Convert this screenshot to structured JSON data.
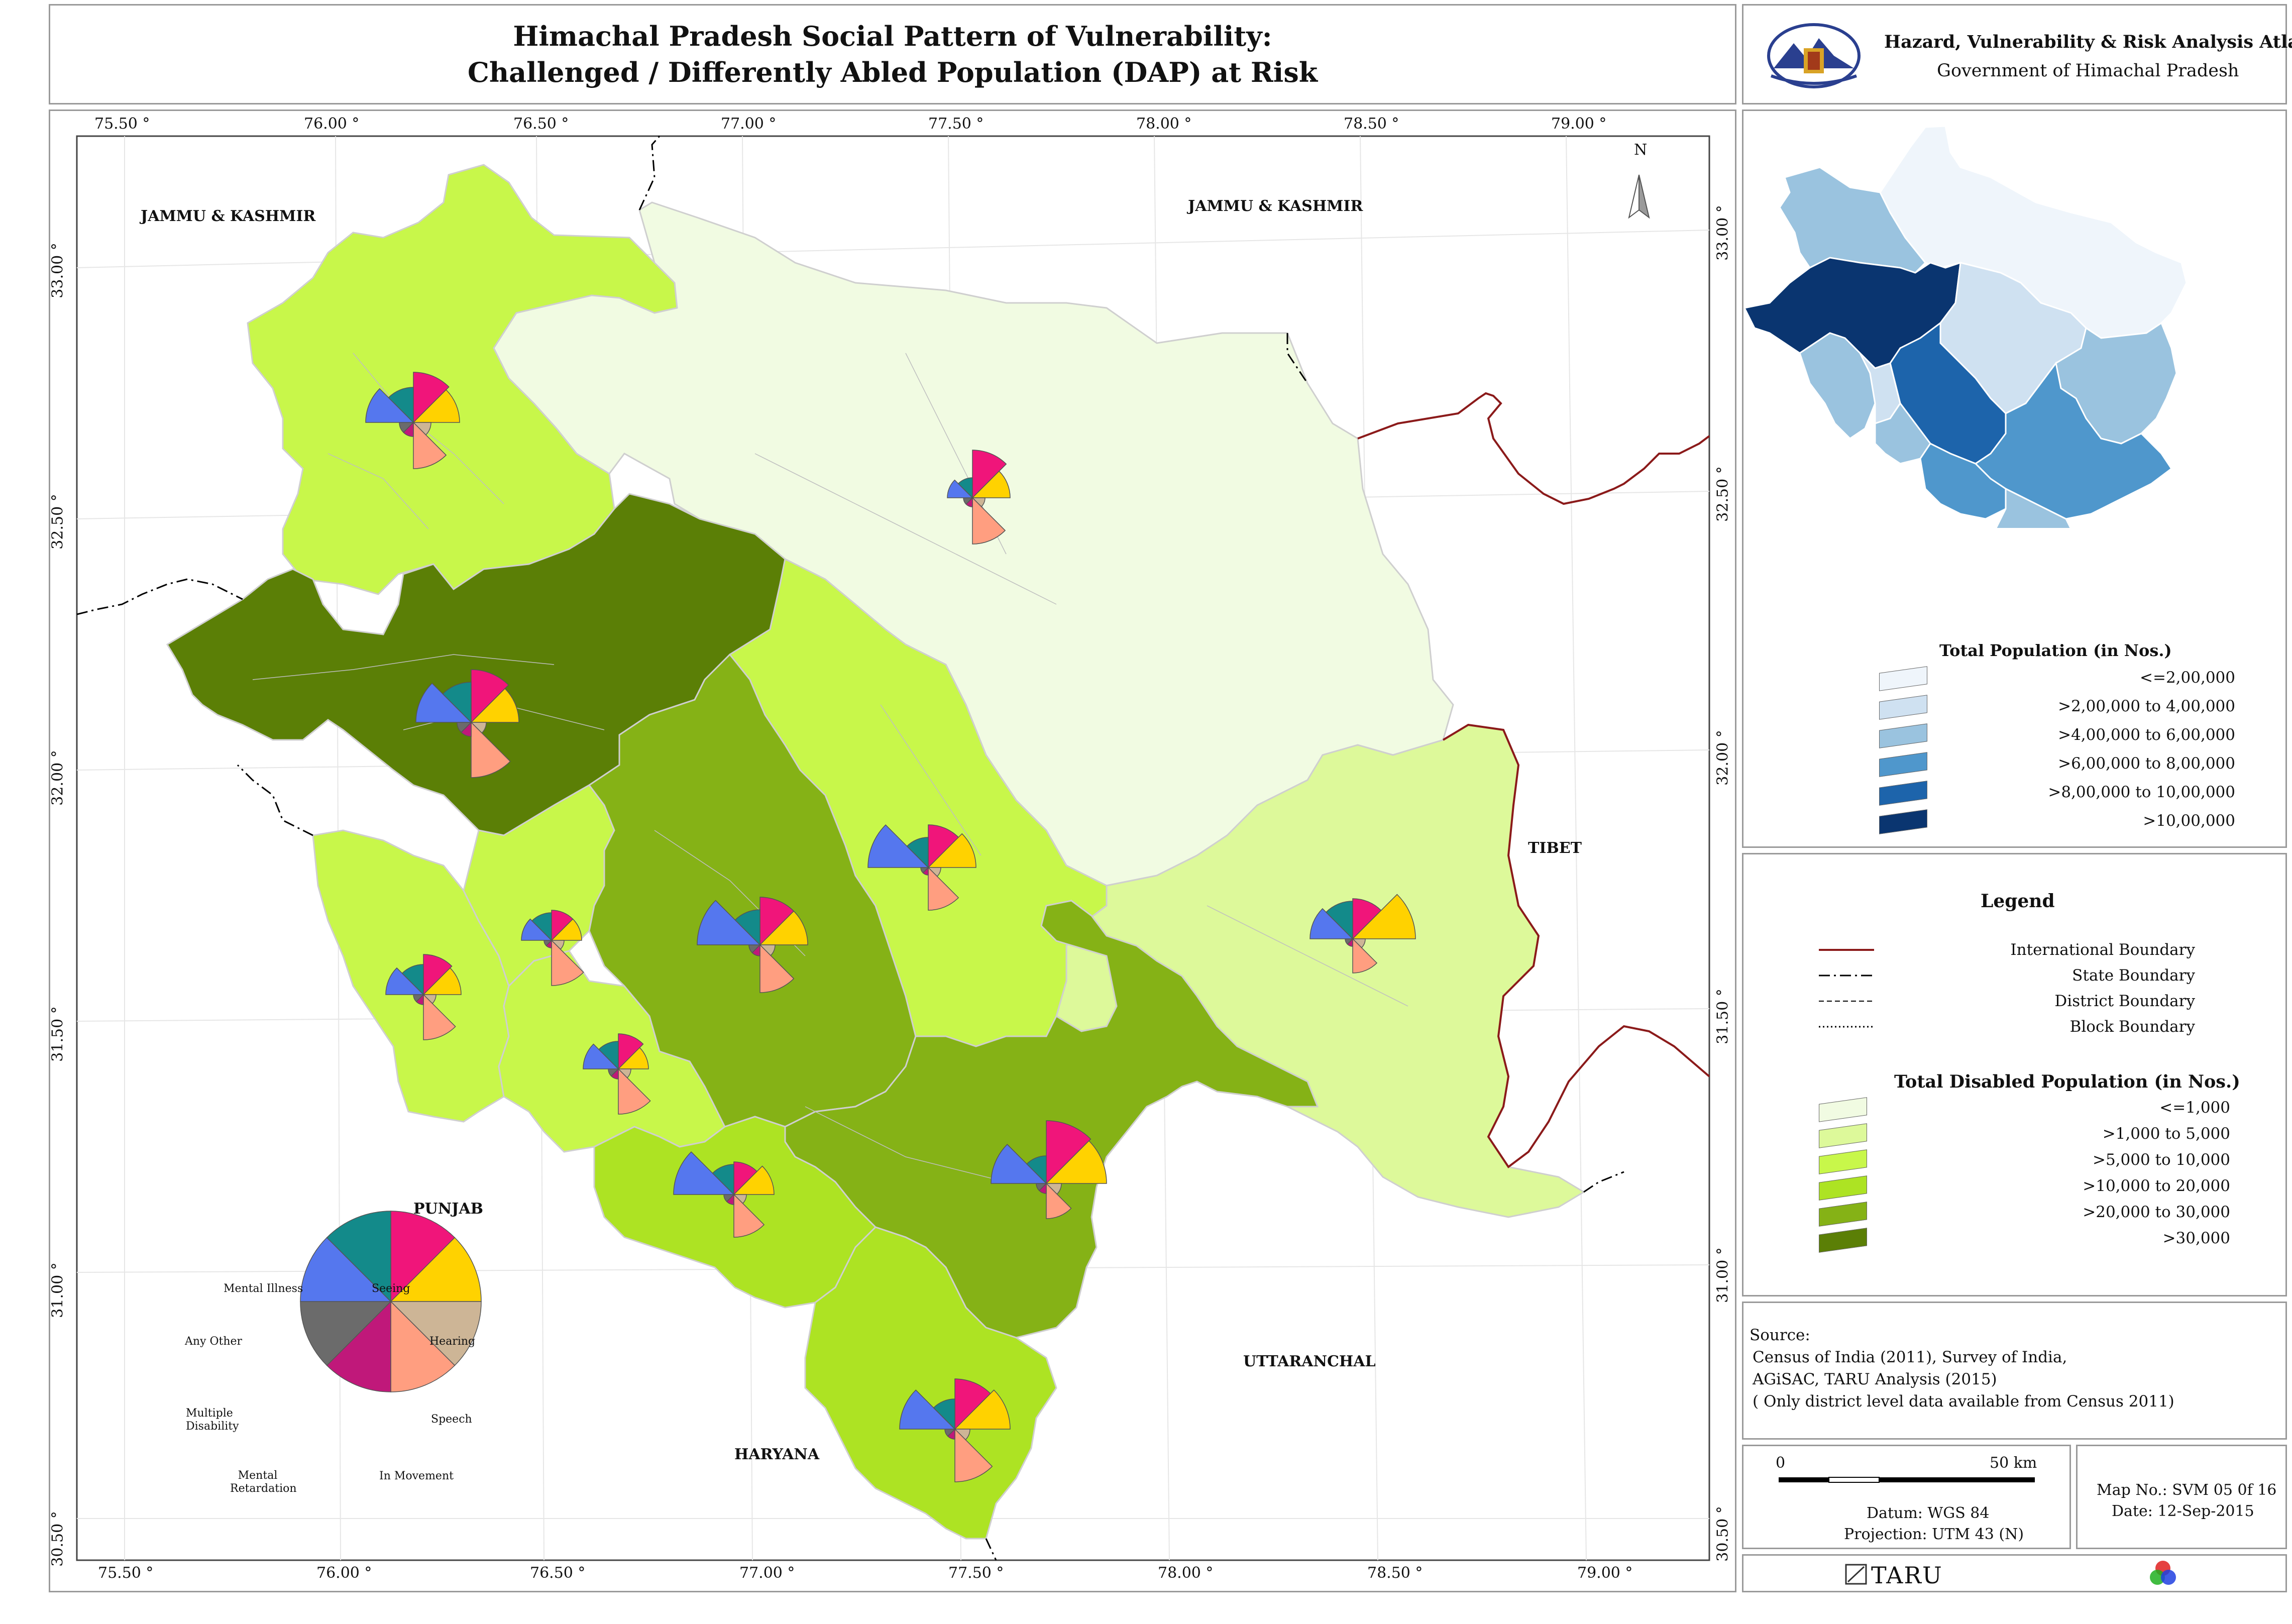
{
  "title": {
    "line1": "Himachal Pradesh Social Pattern of Vulnerability:",
    "line2": "Challenged / Differently Abled Population (DAP) at Risk"
  },
  "atlas": {
    "title": "Hazard, Vulnerability & Risk Analysis Atlas",
    "subtitle": "Government of Himachal Pradesh",
    "emblem_icon": "himachal-emblem-icon"
  },
  "map": {
    "top_ticks": [
      "75.50 °",
      "76.00 °",
      "76.50 °",
      "77.00 °",
      "77.50 °",
      "78.00 °",
      "78.50 °",
      "79.00 °"
    ],
    "bottom_ticks": [
      "75.50 °",
      "76.00 °",
      "76.50 °",
      "77.00 °",
      "77.50 °",
      "78.00 °",
      "78.50 °",
      "79.00 °"
    ],
    "left_ticks": [
      "33.00 °",
      "32.50 °",
      "32.00 °",
      "31.50 °",
      "31.00 °",
      "30.50 °"
    ],
    "right_ticks": [
      "33.00 °",
      "32.50 °",
      "32.00 °",
      "31.50 °",
      "31.00 °",
      "30.50 °"
    ],
    "north_label": "N",
    "north_icon": "north-arrow-icon",
    "labels": {
      "jk_west": "JAMMU & KASHMIR",
      "jk_north": "JAMMU & KASHMIR",
      "tibet": "TIBET",
      "punjab": "PUNJAB",
      "haryana": "HARYANA",
      "uttaranchal": "UTTARANCHAL"
    },
    "district_colors": {
      "lt1000": "#f1fbe2",
      "r1000_5000": "#ddf99a",
      "r5000_10000": "#c8f74a",
      "r10000_20000": "#ade323",
      "r20000_30000": "#85b216",
      "gt30000": "#5b7f06"
    }
  },
  "pie_key": {
    "labels": {
      "mental_illness": "Mental Illness",
      "seeing": "Seeing",
      "any_other": "Any Other",
      "hearing": "Hearing",
      "multiple": "Multiple Disability",
      "speech": "Speech",
      "retardation": "Mental Retardation",
      "movement": "In Movement"
    },
    "colors": {
      "seeing": "#f0157a",
      "hearing": "#ffd200",
      "speech": "#cdb596",
      "movement": "#ff9e80",
      "retardation": "#c0187a",
      "multiple": "#6b6b6b",
      "any_other": "#5577ee",
      "mental_illness": "#138a8a"
    }
  },
  "inset": {
    "legend_title": "Total Population (in Nos.)",
    "classes": [
      {
        "label": "<=2,00,000",
        "color": "#eff5fb"
      },
      {
        "label": ">2,00,000 to 4,00,000",
        "color": "#cfe1f1"
      },
      {
        "label": ">4,00,000 to 6,00,000",
        "color": "#9ac3df"
      },
      {
        "label": ">6,00,000 to 8,00,000",
        "color": "#4f97cc"
      },
      {
        "label": ">8,00,000 to 10,00,000",
        "color": "#1d64ab"
      },
      {
        "label": ">10,00,000",
        "color": "#0a3570"
      }
    ]
  },
  "legend": {
    "title": "Legend",
    "boundaries": [
      {
        "label": "International Boundary",
        "color": "#8b1a1a",
        "style": "solid"
      },
      {
        "label": "State Boundary",
        "color": "#000000",
        "style": "dashdot"
      },
      {
        "label": "District Boundary",
        "color": "#000000",
        "style": "dashed"
      },
      {
        "label": "Block Boundary",
        "color": "#000000",
        "style": "dotted"
      }
    ],
    "disabled_title": "Total Disabled Population (in Nos.)",
    "disabled_classes": [
      {
        "label": "<=1,000",
        "color": "#f1fbe2"
      },
      {
        "label": ">1,000 to 5,000",
        "color": "#ddf99a"
      },
      {
        "label": ">5,000 to 10,000",
        "color": "#c8f74a"
      },
      {
        "label": ">10,000 to 20,000",
        "color": "#ade323"
      },
      {
        "label": ">20,000 to 30,000",
        "color": "#85b216"
      },
      {
        "label": ">30,000",
        "color": "#5b7f06"
      }
    ]
  },
  "source": {
    "heading": "Source:",
    "line1": "Census of India (2011), Survey of India,",
    "line2": "AGiSAC, TARU Analysis (2015)",
    "line3": "( Only district level data available from Census 2011)"
  },
  "scale": {
    "zero": "0",
    "max": "50 km",
    "datum": "Datum: WGS 84",
    "projection": "Projection: UTM 43 (N)"
  },
  "map_info": {
    "map_no": "Map No.: SVM 05 0f 16",
    "date": "Date: 12-Sep-2015"
  },
  "footer": {
    "taru": "TARU",
    "taru_icon": "taru-logo-icon",
    "rgb_icon": "rgb-circles-logo-icon"
  }
}
